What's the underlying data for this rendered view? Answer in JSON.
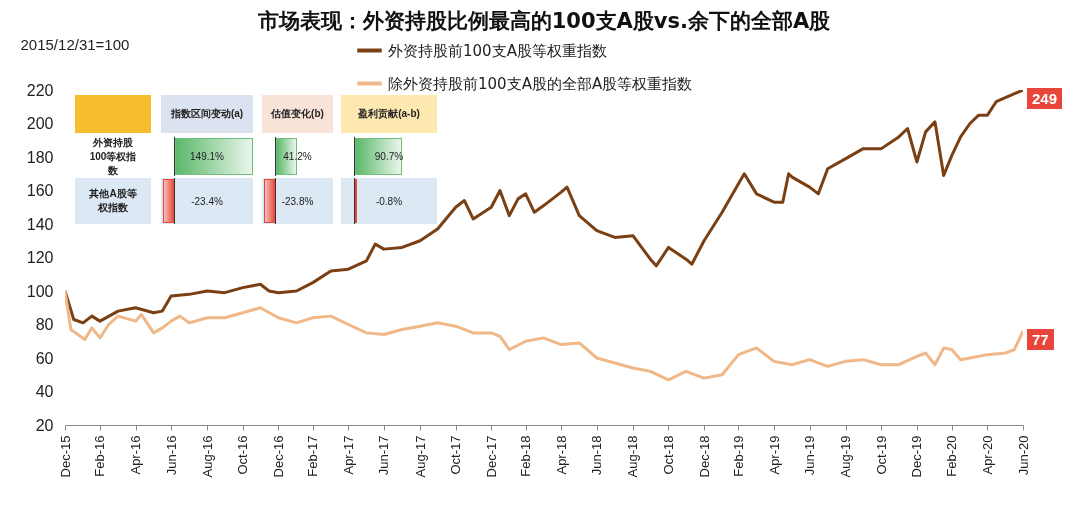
{
  "chart_data": {
    "type": "line",
    "title": "市场表现：外资持股比例最高的100支A股vs.余下的全部A股",
    "ylabel": "2015/12/31=100",
    "legend": "top",
    "line_style": "solid",
    "grid": false,
    "xlim": [
      "2015-12-31",
      "2020-06-30"
    ],
    "ylim": [
      20,
      220
    ],
    "yticks": [
      20,
      40,
      60,
      80,
      100,
      120,
      140,
      160,
      180,
      200,
      220
    ],
    "xticks": [
      {
        "value": "2015-12-31",
        "label": "Dec-15"
      },
      {
        "value": "2016-02-29",
        "label": "Feb-16"
      },
      {
        "value": "2016-04-30",
        "label": "Apr-16"
      },
      {
        "value": "2016-06-30",
        "label": "Jun-16"
      },
      {
        "value": "2016-08-31",
        "label": "Aug-16"
      },
      {
        "value": "2016-10-31",
        "label": "Oct-16"
      },
      {
        "value": "2016-12-31",
        "label": "Dec-16"
      },
      {
        "value": "2017-02-28",
        "label": "Feb-17"
      },
      {
        "value": "2017-04-30",
        "label": "Apr-17"
      },
      {
        "value": "2017-06-30",
        "label": "Jun-17"
      },
      {
        "value": "2017-08-31",
        "label": "Aug-17"
      },
      {
        "value": "2017-10-31",
        "label": "Oct-17"
      },
      {
        "value": "2017-12-31",
        "label": "Dec-17"
      },
      {
        "value": "2018-02-28",
        "label": "Feb-18"
      },
      {
        "value": "2018-04-30",
        "label": "Apr-18"
      },
      {
        "value": "2018-06-30",
        "label": "Jun-18"
      },
      {
        "value": "2018-08-31",
        "label": "Aug-18"
      },
      {
        "value": "2018-10-31",
        "label": "Oct-18"
      },
      {
        "value": "2018-12-31",
        "label": "Dec-18"
      },
      {
        "value": "2019-02-28",
        "label": "Feb-19"
      },
      {
        "value": "2019-04-30",
        "label": "Apr-19"
      },
      {
        "value": "2019-06-30",
        "label": "Jun-19"
      },
      {
        "value": "2019-08-31",
        "label": "Aug-19"
      },
      {
        "value": "2019-10-31",
        "label": "Oct-19"
      },
      {
        "value": "2019-12-31",
        "label": "Dec-19"
      },
      {
        "value": "2020-02-29",
        "label": "Feb-20"
      },
      {
        "value": "2020-04-30",
        "label": "Apr-20"
      },
      {
        "value": "2020-06-30",
        "label": "Jun-20"
      }
    ],
    "series": [
      {
        "name": "外资持股前100支A股等权重指数",
        "color": "#7b3f14",
        "x": [
          "2015-12-31",
          "2016-01-15",
          "2016-01-31",
          "2016-02-15",
          "2016-02-29",
          "2016-03-31",
          "2016-04-30",
          "2016-05-31",
          "2016-06-15",
          "2016-06-30",
          "2016-07-31",
          "2016-08-31",
          "2016-09-30",
          "2016-10-31",
          "2016-11-30",
          "2016-12-15",
          "2016-12-31",
          "2017-01-31",
          "2017-02-28",
          "2017-03-31",
          "2017-04-30",
          "2017-05-31",
          "2017-06-15",
          "2017-06-30",
          "2017-07-31",
          "2017-08-31",
          "2017-09-30",
          "2017-10-31",
          "2017-11-15",
          "2017-11-30",
          "2017-12-31",
          "2018-01-15",
          "2018-01-31",
          "2018-02-15",
          "2018-02-28",
          "2018-03-15",
          "2018-03-31",
          "2018-04-30",
          "2018-05-10",
          "2018-05-31",
          "2018-06-30",
          "2018-07-31",
          "2018-08-31",
          "2018-09-30",
          "2018-10-10",
          "2018-10-31",
          "2018-11-30",
          "2018-12-10",
          "2018-12-31",
          "2019-01-31",
          "2019-02-28",
          "2019-03-10",
          "2019-03-31",
          "2019-04-30",
          "2019-05-15",
          "2019-05-25",
          "2019-05-31",
          "2019-06-30",
          "2019-07-15",
          "2019-07-31",
          "2019-08-31",
          "2019-09-30",
          "2019-10-31",
          "2019-11-30",
          "2019-12-15",
          "2019-12-31",
          "2020-01-15",
          "2020-01-31",
          "2020-02-15",
          "2020-02-29",
          "2020-03-15",
          "2020-03-31",
          "2020-04-15",
          "2020-04-30",
          "2020-05-15",
          "2020-06-30"
        ],
        "values": [
          100,
          83,
          81,
          85,
          82,
          88,
          90,
          87,
          88,
          97,
          98,
          100,
          99,
          102,
          104,
          100,
          99,
          100,
          105,
          112,
          113,
          118,
          128,
          125,
          126,
          130,
          137,
          150,
          154,
          143,
          150,
          160,
          145,
          155,
          158,
          147,
          151,
          159,
          162,
          145,
          136,
          132,
          133,
          119,
          115,
          126,
          119,
          116,
          130,
          147,
          164,
          170,
          158,
          153,
          153,
          170,
          168,
          162,
          158,
          173,
          179,
          185,
          185,
          192,
          197,
          177,
          195,
          201,
          169,
          181,
          192,
          200,
          205,
          205,
          213,
          220
        ]
      },
      {
        "name": "除外资持股前100支A股的全部A股等权重指数",
        "color": "#f0b888",
        "x": [
          "2015-12-31",
          "2016-01-10",
          "2016-02-03",
          "2016-02-15",
          "2016-02-29",
          "2016-03-15",
          "2016-03-31",
          "2016-04-30",
          "2016-05-10",
          "2016-05-31",
          "2016-06-15",
          "2016-06-30",
          "2016-07-15",
          "2016-07-31",
          "2016-08-31",
          "2016-09-30",
          "2016-10-31",
          "2016-11-30",
          "2016-12-31",
          "2017-01-31",
          "2017-02-28",
          "2017-03-31",
          "2017-04-30",
          "2017-05-31",
          "2017-06-30",
          "2017-07-31",
          "2017-08-31",
          "2017-09-30",
          "2017-10-31",
          "2017-11-30",
          "2017-12-31",
          "2018-01-15",
          "2018-01-31",
          "2018-02-28",
          "2018-03-31",
          "2018-04-30",
          "2018-05-31",
          "2018-06-30",
          "2018-07-31",
          "2018-08-31",
          "2018-09-30",
          "2018-10-31",
          "2018-11-30",
          "2018-12-31",
          "2019-01-31",
          "2019-02-28",
          "2019-03-31",
          "2019-04-30",
          "2019-05-31",
          "2019-06-30",
          "2019-07-31",
          "2019-08-31",
          "2019-09-30",
          "2019-10-31",
          "2019-11-30",
          "2019-12-31",
          "2020-01-15",
          "2020-01-31",
          "2020-02-15",
          "2020-02-29",
          "2020-03-15",
          "2020-03-31",
          "2020-04-30",
          "2020-05-31",
          "2020-06-15",
          "2020-06-30"
        ],
        "values": [
          100,
          77,
          71,
          78,
          72,
          80,
          85,
          82,
          86,
          75,
          78,
          82,
          85,
          81,
          84,
          84,
          87,
          90,
          84,
          81,
          84,
          85,
          80,
          75,
          74,
          77,
          79,
          81,
          79,
          75,
          75,
          73,
          65,
          70,
          72,
          68,
          69,
          60,
          57,
          54,
          52,
          47,
          52,
          48,
          50,
          62,
          66,
          58,
          56,
          59,
          55,
          58,
          59,
          56,
          56,
          61,
          63,
          56,
          66,
          65,
          59,
          60,
          62,
          63,
          65,
          76
        ]
      }
    ],
    "annotations": [
      "249",
      "77",
      "指数区间变动(a)",
      "估值变化(b)",
      "盈利贡献(a-b)",
      "外资持股100等权指数",
      "149.1%",
      "41.2%",
      "90.7%",
      "其他A股等权指数",
      "-23.4%",
      "-23.8%",
      "-0.8%"
    ]
  }
}
